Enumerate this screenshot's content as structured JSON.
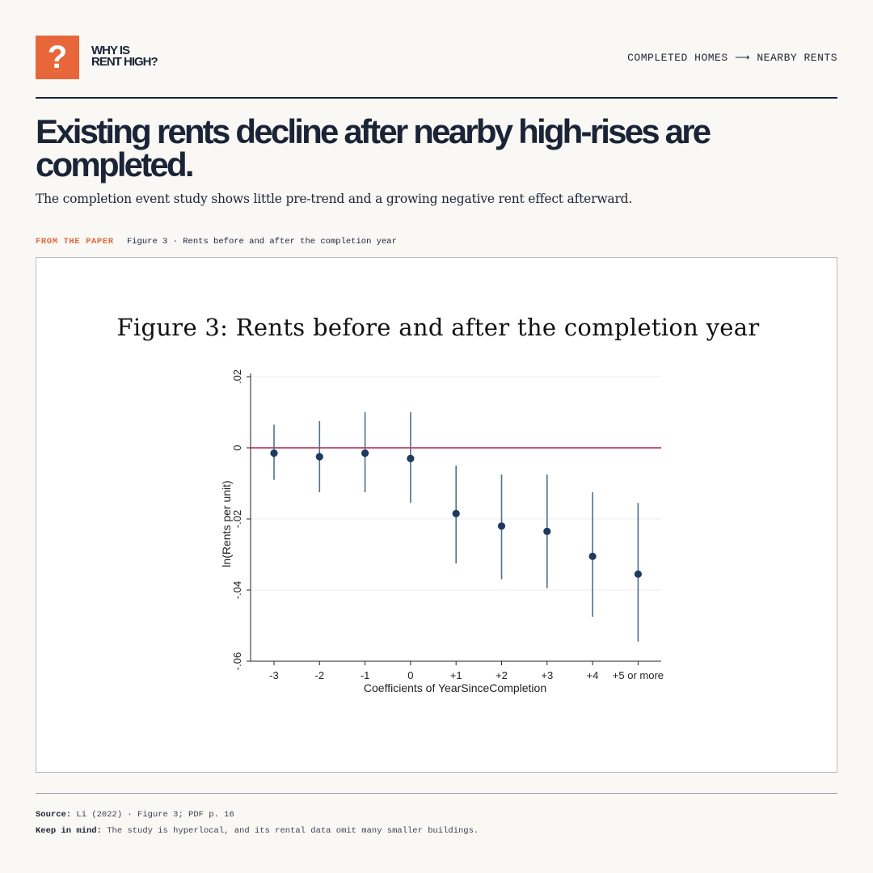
{
  "brand": {
    "logo_glyph": "?",
    "line1": "WHY IS",
    "line2": "RENT HIGH?",
    "accent": "#e8673a"
  },
  "header": {
    "topic": "COMPLETED HOMES ⟶ NEARBY RENTS"
  },
  "headline": "Existing rents decline after nearby high-rises are completed.",
  "subhead": "The completion event study shows little pre-trend and a growing negative rent effect afterward.",
  "figure_label": {
    "tag": "FROM THE PAPER",
    "caption": "Figure 3 · Rents before and after the completion year"
  },
  "chart_data": {
    "type": "scatter",
    "title": "Figure 3: Rents before and after the completion year",
    "xlabel": "Coefficients of YearSinceCompletion",
    "ylabel": "ln(Rents per unit)",
    "categories": [
      "-3",
      "-2",
      "-1",
      "0",
      "+1",
      "+2",
      "+3",
      "+4",
      "+5 or more"
    ],
    "estimates": [
      -0.0015,
      -0.0025,
      -0.0015,
      -0.003,
      -0.0185,
      -0.022,
      -0.0235,
      -0.0305,
      -0.0355
    ],
    "ci_low": [
      -0.009,
      -0.0125,
      -0.0125,
      -0.0155,
      -0.0325,
      -0.037,
      -0.0395,
      -0.0475,
      -0.0545
    ],
    "ci_high": [
      0.0065,
      0.0075,
      0.01,
      0.01,
      -0.005,
      -0.0075,
      -0.0075,
      -0.0125,
      -0.0155
    ],
    "ylim": [
      -0.06,
      0.02
    ],
    "yticks": [
      -0.06,
      -0.04,
      -0.02,
      0,
      0.02
    ],
    "ytick_labels": [
      "-.06",
      "-.04",
      "-.02",
      "0",
      ".02"
    ],
    "reference_line": 0,
    "colors": {
      "point": "#1e3a5f",
      "ci": "#4f6f8c",
      "reference": "#b0204f",
      "grid": "#eceef1"
    },
    "grid": true,
    "legend": "none"
  },
  "footer": {
    "source_label": "Source:",
    "source_text": "Li (2022) · Figure 3; PDF p. 16",
    "note_label": "Keep in mind:",
    "note_text": "The study is hyperlocal, and its rental data omit many smaller buildings."
  }
}
